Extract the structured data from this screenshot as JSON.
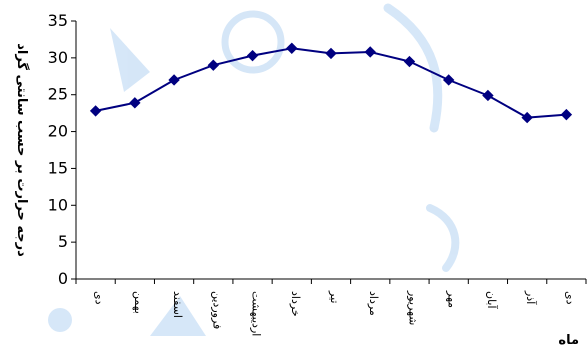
{
  "chart_data": {
    "type": "line",
    "categories": [
      "دی",
      "بهمن",
      "اسفند",
      "فروردین",
      "اردیبهشت",
      "خرداد",
      "تیر",
      "مرداد",
      "شهریور",
      "مهر",
      "آبان",
      "آذر",
      "دی"
    ],
    "series": [
      {
        "values": [
          22.8,
          23.9,
          27.0,
          29.0,
          30.3,
          31.3,
          30.6,
          30.8,
          29.5,
          27.0,
          24.9,
          21.9,
          22.3
        ]
      }
    ],
    "ylabel": "درجه حرارت بر حسب سانتی گراد",
    "xlabel": "ماه",
    "ylim": [
      0,
      35
    ],
    "yticks": [
      0,
      5,
      10,
      15,
      20,
      25,
      30,
      35
    ],
    "grid": false,
    "legend": false,
    "line_color": "#000080",
    "marker_color": "#000080",
    "marker": "diamond"
  },
  "watermark": {
    "kind": "logo",
    "color": "#1e7ad6"
  }
}
